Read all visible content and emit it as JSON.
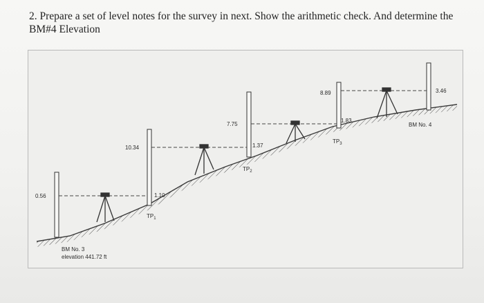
{
  "question": {
    "text": "2. Prepare a set of level notes for the survey in next. Show the arithmetic check. And determine the BM#4 Elevation"
  },
  "figure": {
    "readings": {
      "bs1": "0.56",
      "fs1": "1.10",
      "bs2": "10.34",
      "fs2": "1.37",
      "bs3": "7.75",
      "fs3": "1.83",
      "bs4": "8.89",
      "fs4": "3.46"
    },
    "points": {
      "tp1": "TP",
      "tp1_sub": "1",
      "tp2": "TP",
      "tp2_sub": "2",
      "tp3": "TP",
      "tp3_sub": "3",
      "bm4": "BM No. 4"
    },
    "bm3": {
      "name": "BM No. 3",
      "elevation": "elevation 441.72 ft"
    },
    "colors": {
      "line": "#3a3a3a",
      "ground_hatch": "#555555"
    }
  }
}
